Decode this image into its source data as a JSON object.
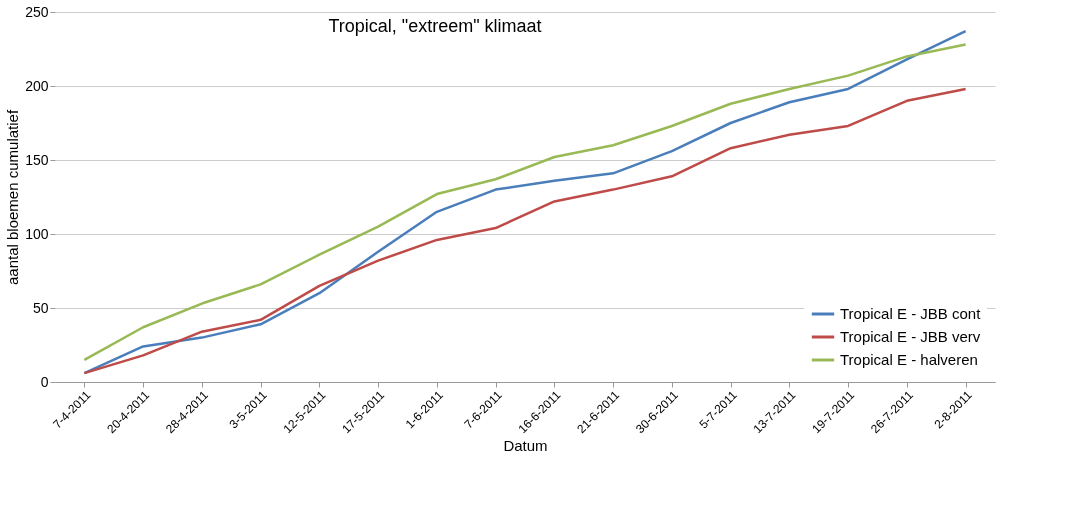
{
  "chart_data": {
    "type": "line",
    "title": "Tropical, \"extreem\" klimaat",
    "xlabel": "Datum",
    "ylabel": "aantal bloemen cumulatief",
    "categories": [
      "7-4-2011",
      "20-4-2011",
      "28-4-2011",
      "3-5-2011",
      "12-5-2011",
      "17-5-2011",
      "1-6-2011",
      "7-6-2011",
      "16-6-2011",
      "21-6-2011",
      "30-6-2011",
      "5-7-2011",
      "13-7-2011",
      "19-7-2011",
      "26-7-2011",
      "2-8-2011"
    ],
    "series": [
      {
        "name": "Tropical E - JBB cont",
        "color": "#4a7ebb",
        "values": [
          6,
          24,
          30,
          39,
          60,
          88,
          115,
          130,
          136,
          141,
          156,
          175,
          189,
          198,
          218,
          237
        ]
      },
      {
        "name": "Tropical E - JBB verv",
        "color": "#be4b48",
        "values": [
          6,
          18,
          34,
          42,
          65,
          82,
          96,
          104,
          122,
          130,
          139,
          158,
          167,
          173,
          190,
          198
        ]
      },
      {
        "name": "Tropical E - halveren",
        "color": "#98b954",
        "values": [
          15,
          37,
          53,
          66,
          86,
          105,
          127,
          137,
          152,
          160,
          173,
          188,
          198,
          207,
          220,
          228
        ]
      }
    ],
    "ylim": [
      0,
      250
    ],
    "yticks": [
      0,
      50,
      100,
      150,
      200,
      250
    ],
    "grid": "y",
    "legend": "bottom right",
    "marker": "none",
    "line_style": "solid"
  }
}
